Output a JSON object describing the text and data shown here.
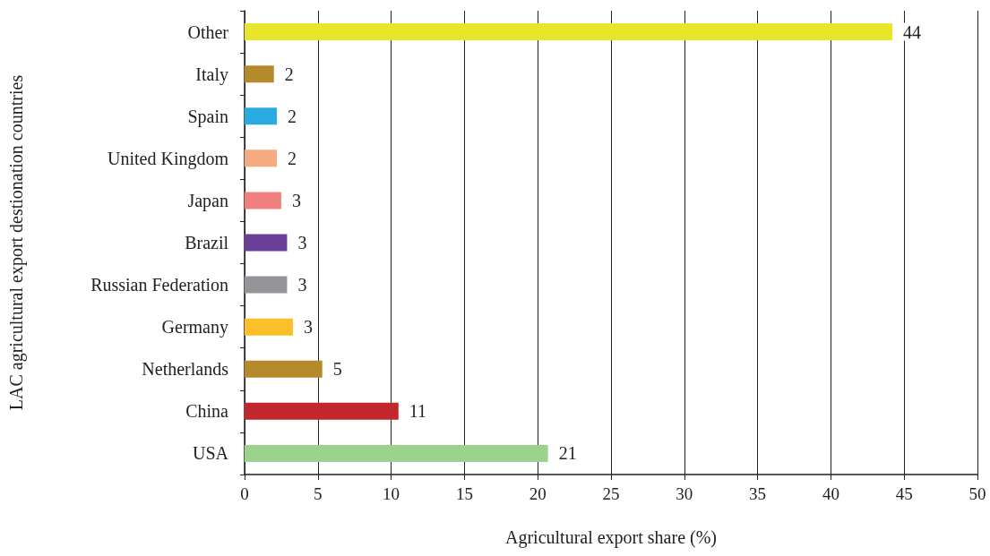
{
  "chart_data": {
    "type": "bar",
    "orientation": "horizontal",
    "xlabel": "Agricultural export share (%)",
    "ylabel": "LAC agricultural export destionation countries",
    "categories": [
      "Other",
      "Italy",
      "Spain",
      "United Kingdom",
      "Japan",
      "Brazil",
      "Russian Federation",
      "Germany",
      "Netherlands",
      "China",
      "USA"
    ],
    "values": [
      44.2,
      2.0,
      2.2,
      2.2,
      2.5,
      2.9,
      2.9,
      3.3,
      5.3,
      10.5,
      20.7
    ],
    "value_labels": [
      "44",
      "2",
      "2",
      "2",
      "3",
      "3",
      "3",
      "3",
      "5",
      "11",
      "21"
    ],
    "colors": [
      "#e8e52a",
      "#b58a2a",
      "#29abe2",
      "#f5ab80",
      "#f08080",
      "#6a3f99",
      "#939598",
      "#fbbf2a",
      "#b58a2a",
      "#c1272d",
      "#9dd18e"
    ],
    "xlim": [
      0,
      50
    ],
    "xticks": [
      0,
      5,
      10,
      15,
      20,
      25,
      30,
      35,
      40,
      45,
      50
    ],
    "grid": "x"
  }
}
